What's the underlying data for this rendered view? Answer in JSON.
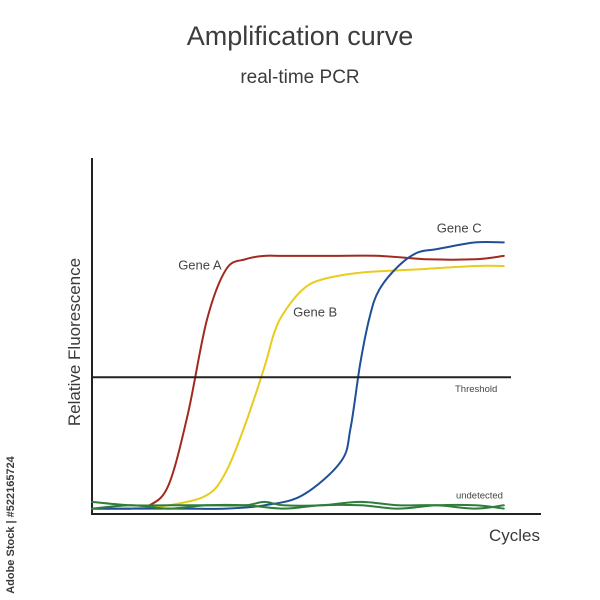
{
  "chart_data": {
    "type": "line",
    "title": "Amplification curve",
    "subtitle": "real-time PCR",
    "xlabel": "Cycles",
    "ylabel": "Relative Fluorescence",
    "xlim": [
      0,
      45
    ],
    "ylim": [
      0,
      100
    ],
    "grid": false,
    "series": [
      {
        "name": "Gene A",
        "color": "#a02a1e",
        "x": [
          0,
          2,
          4,
          6,
          8,
          10,
          12,
          14,
          16,
          18,
          20,
          25,
          30,
          35,
          40,
          43
        ],
        "y": [
          1,
          1,
          1,
          2,
          8,
          29,
          57,
          72,
          75,
          76,
          76,
          76,
          76,
          75,
          75,
          76
        ]
      },
      {
        "name": "Gene B",
        "color": "#e8cc1e",
        "x": [
          0,
          4,
          8,
          12,
          14,
          16,
          18,
          19,
          20,
          22,
          24,
          28,
          34,
          40,
          43
        ],
        "y": [
          1,
          1,
          2,
          5,
          12,
          26,
          43,
          53,
          59,
          66,
          69,
          71,
          72,
          73,
          73
        ]
      },
      {
        "name": "Gene C",
        "color": "#1f4f96",
        "x": [
          0,
          6,
          10,
          14,
          18,
          22,
          26,
          27,
          28,
          29,
          30,
          32,
          34,
          36,
          40,
          43
        ],
        "y": [
          1,
          1,
          1,
          1,
          2,
          5,
          15,
          25,
          44,
          58,
          66,
          73,
          77,
          78,
          80,
          80
        ]
      },
      {
        "name": "undetected",
        "color": "#2f7d3a",
        "x": [
          0,
          4,
          8,
          12,
          16,
          18,
          20,
          24,
          28,
          32,
          36,
          40,
          43
        ],
        "y": [
          3,
          2,
          2,
          2,
          2,
          3,
          2,
          2,
          3,
          2,
          2,
          1,
          2
        ]
      },
      {
        "name": "undetected-2",
        "color": "#2f7d3a",
        "x": [
          0,
          4,
          8,
          12,
          16,
          20,
          24,
          28,
          32,
          36,
          40,
          43
        ],
        "y": [
          1,
          2,
          1,
          2,
          2,
          1,
          2,
          2,
          1,
          2,
          2,
          1
        ]
      }
    ],
    "threshold": {
      "label": "Threshold",
      "y": 40
    },
    "annotations": [
      {
        "text": "Gene A",
        "x": 9,
        "y": 72
      },
      {
        "text": "Gene B",
        "x": 21,
        "y": 58
      },
      {
        "text": "Gene C",
        "x": 36,
        "y": 83
      },
      {
        "text": "undetected",
        "x": 38,
        "y": 4
      }
    ]
  },
  "watermark": {
    "text": "Adobe Stock | #522165724"
  }
}
